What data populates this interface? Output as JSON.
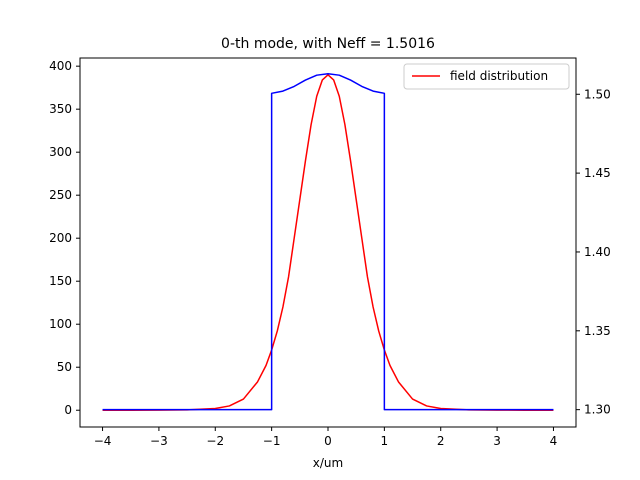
{
  "chart_data": {
    "type": "line",
    "title": "0-th mode, with Neff = 1.5016",
    "xlabel": "x/um",
    "ylabel": "",
    "y2label": "",
    "xlim": [
      -4.4,
      4.4
    ],
    "ylim": [
      -19.5,
      409.5
    ],
    "y2lim": [
      1.289,
      1.523
    ],
    "xticks": [
      -4,
      -3,
      -2,
      -1,
      0,
      1,
      2,
      3,
      4
    ],
    "xtick_labels": [
      "−4",
      "−3",
      "−2",
      "−1",
      "0",
      "1",
      "2",
      "3",
      "4"
    ],
    "yticks": [
      0,
      50,
      100,
      150,
      200,
      250,
      300,
      350,
      400
    ],
    "ytick_labels": [
      "0",
      "50",
      "100",
      "150",
      "200",
      "250",
      "300",
      "350",
      "400"
    ],
    "y2ticks": [
      1.3,
      1.35,
      1.4,
      1.45,
      1.5
    ],
    "y2tick_labels": [
      "1.30",
      "1.35",
      "1.40",
      "1.45",
      "1.50"
    ],
    "legend": {
      "position": "upper right"
    },
    "series": [
      {
        "name": "field distribution",
        "color": "#ff0000",
        "axis": "left",
        "x": [
          -4.0,
          -3.5,
          -3.0,
          -2.5,
          -2.0,
          -1.75,
          -1.5,
          -1.25,
          -1.1,
          -1.0,
          -0.9,
          -0.8,
          -0.7,
          -0.6,
          -0.5,
          -0.4,
          -0.3,
          -0.2,
          -0.1,
          0.0,
          0.1,
          0.2,
          0.3,
          0.4,
          0.5,
          0.6,
          0.7,
          0.8,
          0.9,
          1.0,
          1.1,
          1.25,
          1.5,
          1.75,
          2.0,
          2.5,
          3.0,
          3.5,
          4.0
        ],
        "y": [
          0,
          0,
          0.1,
          0.4,
          2,
          5,
          13,
          33,
          52,
          70,
          92,
          120,
          155,
          200,
          245,
          290,
          332,
          365,
          384,
          390,
          384,
          365,
          332,
          290,
          245,
          200,
          155,
          120,
          92,
          70,
          52,
          33,
          13,
          5,
          2,
          0.4,
          0.1,
          0,
          0
        ]
      },
      {
        "name": "",
        "color": "#0000ff",
        "axis": "right",
        "x": [
          -4.0,
          -1.0,
          -1.0,
          -0.8,
          -0.6,
          -0.4,
          -0.2,
          0.0,
          0.2,
          0.4,
          0.6,
          0.8,
          1.0,
          1.0,
          4.0
        ],
        "y": [
          1.3,
          1.3,
          1.5006,
          1.502,
          1.505,
          1.509,
          1.5121,
          1.513,
          1.5121,
          1.509,
          1.505,
          1.502,
          1.5006,
          1.3,
          1.3
        ]
      }
    ]
  }
}
